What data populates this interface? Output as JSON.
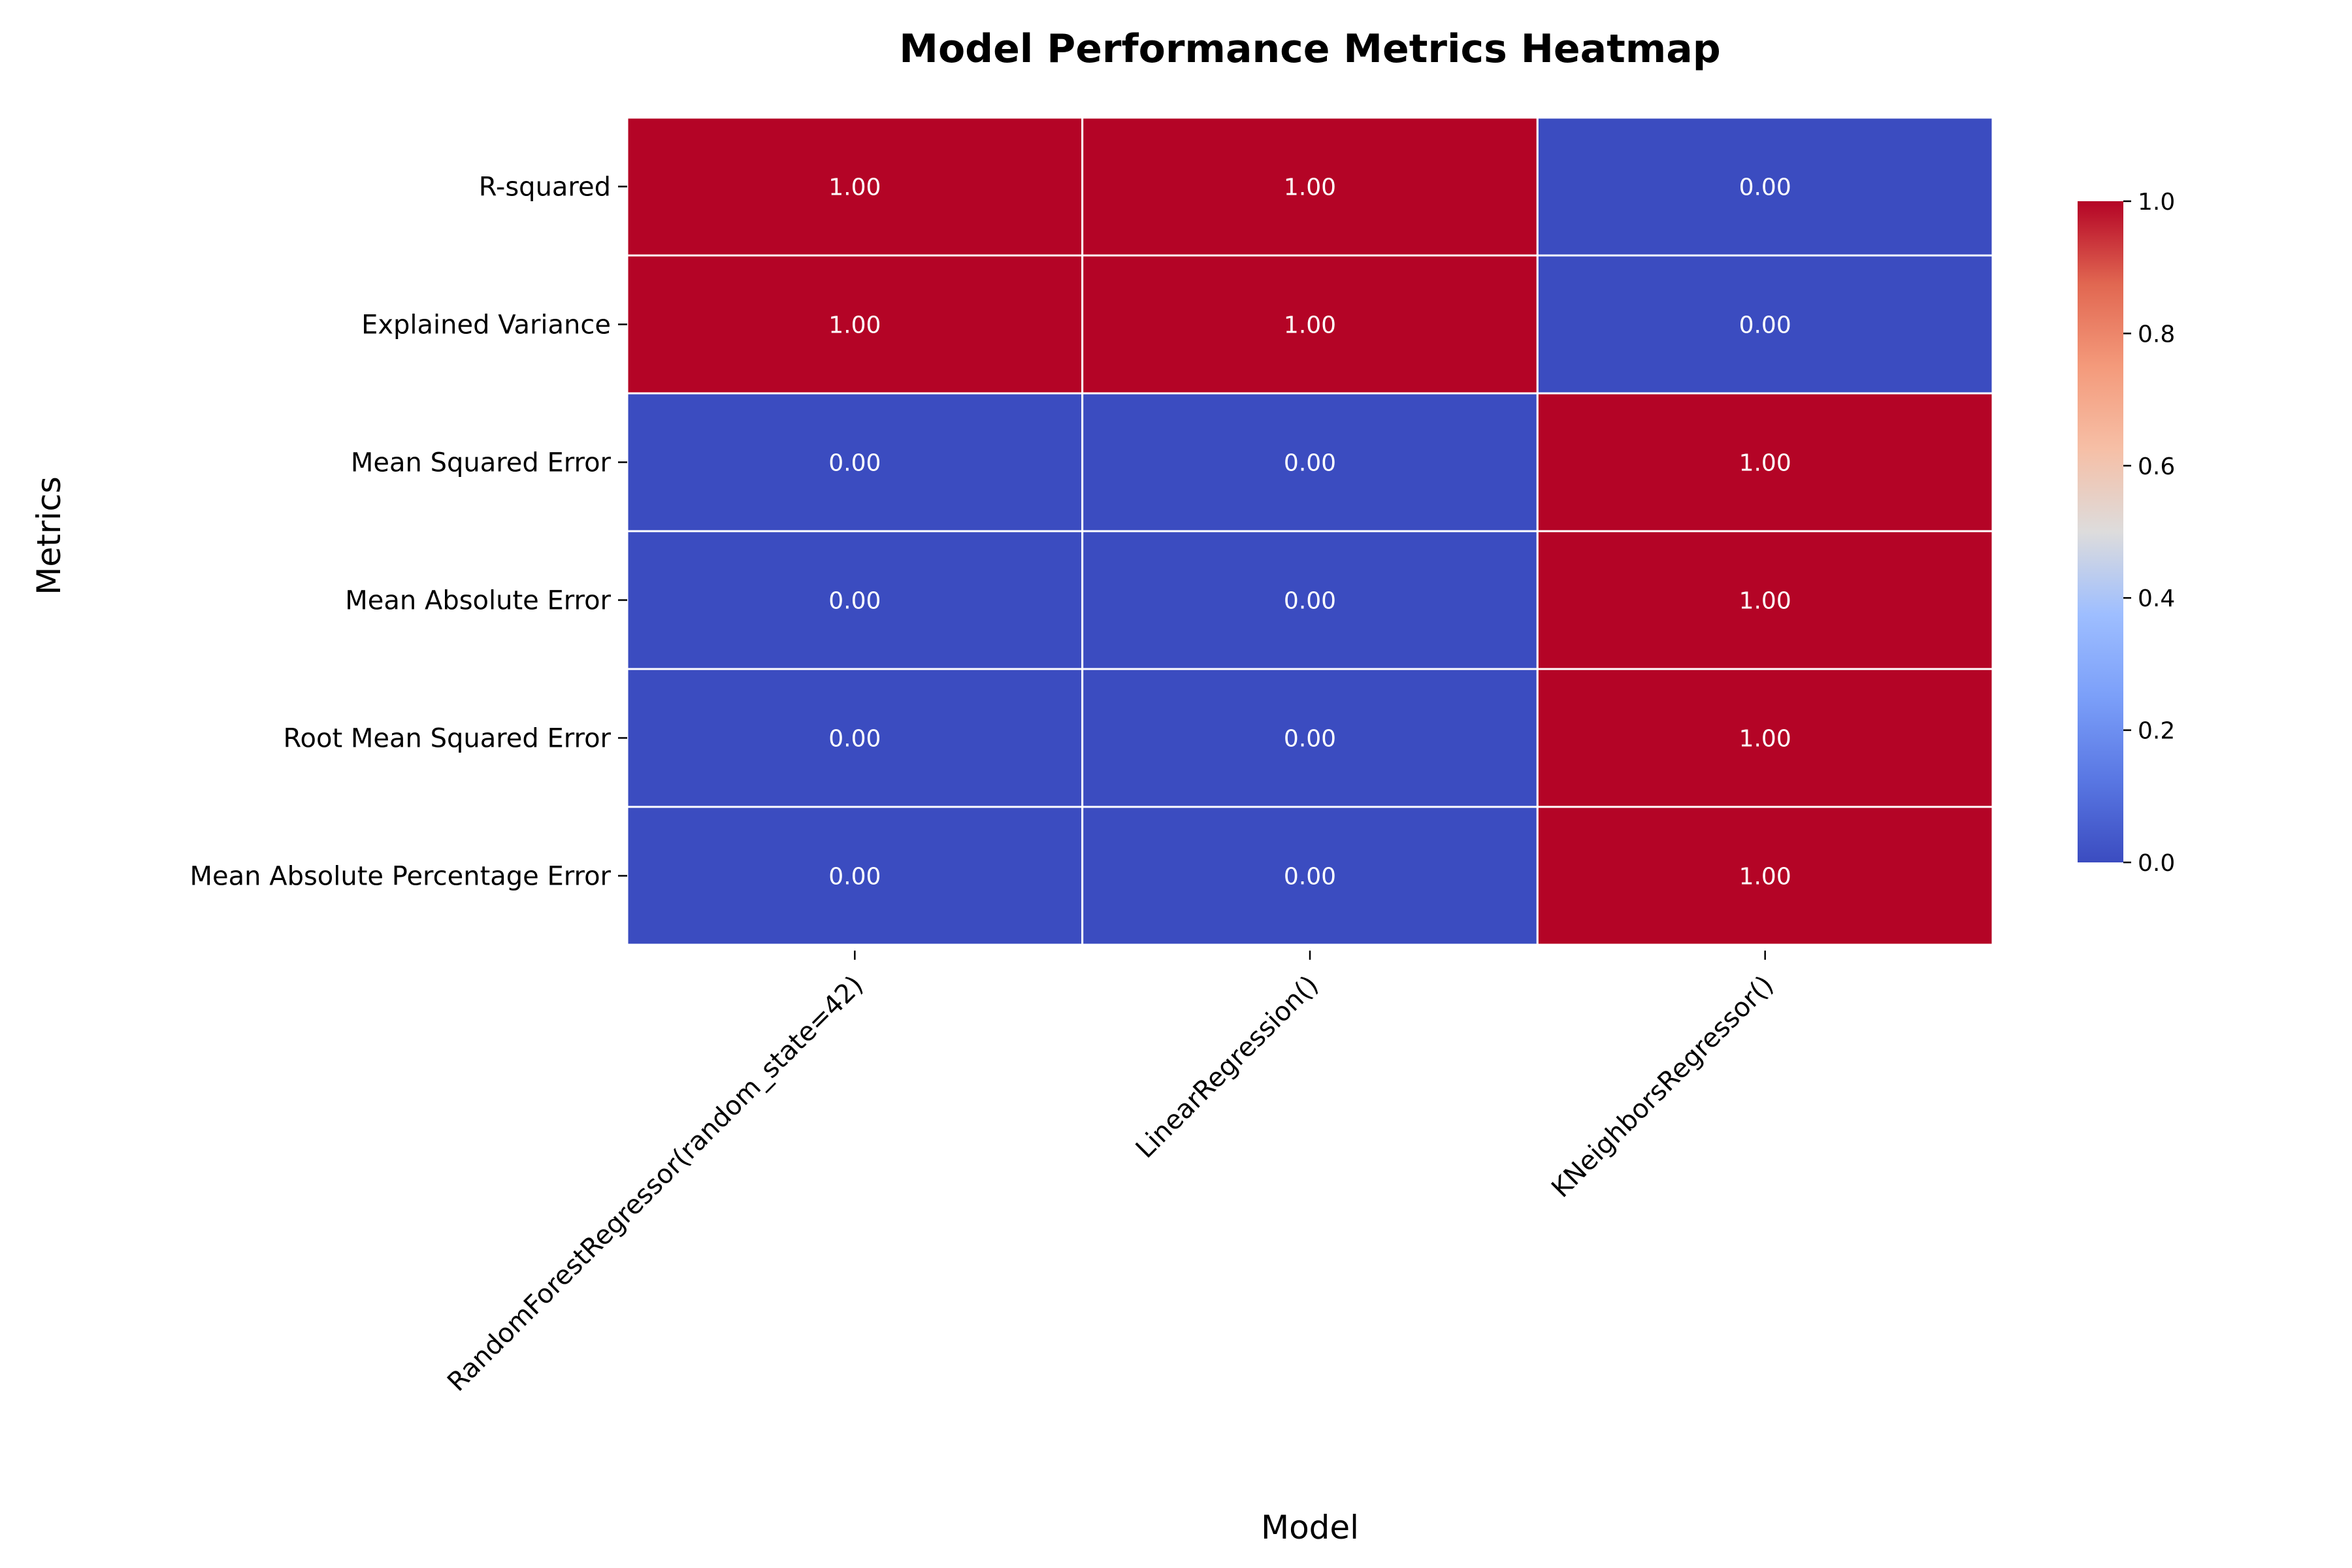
{
  "chart_data": {
    "type": "heatmap",
    "title": "Model Performance Metrics Heatmap",
    "xlabel": "Model",
    "ylabel": "Metrics",
    "x_categories": [
      "RandomForestRegressor(random_state=42)",
      "LinearRegression()",
      "KNeighborsRegressor()"
    ],
    "y_categories": [
      "R-squared",
      "Explained Variance",
      "Mean Squared Error",
      "Mean Absolute Error",
      "Root Mean Squared Error",
      "Mean Absolute Percentage Error"
    ],
    "values": [
      [
        1.0,
        1.0,
        0.0
      ],
      [
        1.0,
        1.0,
        0.0
      ],
      [
        0.0,
        0.0,
        1.0
      ],
      [
        0.0,
        0.0,
        1.0
      ],
      [
        0.0,
        0.0,
        1.0
      ],
      [
        0.0,
        0.0,
        1.0
      ]
    ],
    "cell_labels": [
      [
        "1.00",
        "1.00",
        "0.00"
      ],
      [
        "1.00",
        "1.00",
        "0.00"
      ],
      [
        "0.00",
        "0.00",
        "1.00"
      ],
      [
        "0.00",
        "0.00",
        "1.00"
      ],
      [
        "0.00",
        "0.00",
        "1.00"
      ],
      [
        "0.00",
        "0.00",
        "1.00"
      ]
    ],
    "colormap": "coolwarm",
    "colors": {
      "low": "#3b4cc0",
      "high": "#b40426"
    },
    "colorbar": {
      "range": [
        0.0,
        1.0
      ],
      "ticks": [
        "0.0",
        "0.2",
        "0.4",
        "0.6",
        "0.8",
        "1.0"
      ]
    }
  }
}
